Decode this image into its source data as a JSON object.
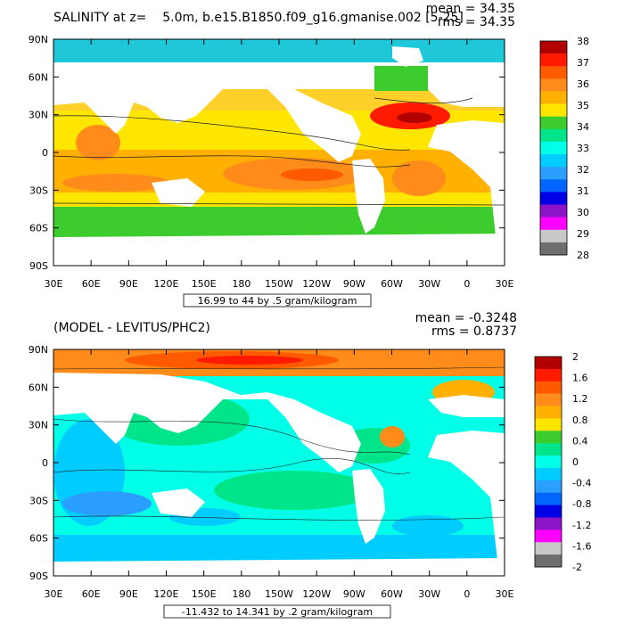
{
  "chart_data": [
    {
      "type": "heatmap",
      "title": "SALINITY at z=    5.0m, b.e15.B1850.f09_g16.gmanise.002 [5-25]",
      "stats": {
        "mean": "mean = 34.35",
        "rms": "rms = 34.35"
      },
      "xlim": [
        30,
        390
      ],
      "ylim": [
        -90,
        90
      ],
      "x_ticks": [
        "30E",
        "60E",
        "90E",
        "120E",
        "150E",
        "180",
        "150W",
        "120W",
        "90W",
        "60W",
        "30W",
        "0",
        "30E"
      ],
      "y_ticks": [
        "90N",
        "60N",
        "30N",
        "0",
        "30S",
        "60S",
        "90S"
      ],
      "contour_info": "16.99 to 44 by .5 gram/kilogram",
      "colorbar": {
        "labels": [
          "38",
          "37",
          "36",
          "35",
          "34",
          "33",
          "32",
          "31",
          "30",
          "29",
          "28"
        ],
        "colors": [
          "#b20000",
          "#ff1a00",
          "#ff5a00",
          "#ff8c1a",
          "#ffb000",
          "#ffe600",
          "#3ccc2d",
          "#00e58a",
          "#00ffe6",
          "#00ccff",
          "#2a9fff",
          "#0066ff",
          "#0000e6",
          "#8c14c8",
          "#ff00ff",
          "#c8c8c8",
          "#6e6e6e"
        ]
      }
    },
    {
      "type": "heatmap",
      "title": "(MODEL - LEVITUS/PHC2)",
      "stats": {
        "mean": "mean = -0.3248",
        "rms": "rms = 0.8737"
      },
      "xlim": [
        30,
        390
      ],
      "ylim": [
        -90,
        90
      ],
      "x_ticks": [
        "30E",
        "60E",
        "90E",
        "120E",
        "150E",
        "180",
        "150W",
        "120W",
        "90W",
        "60W",
        "30W",
        "0",
        "30E"
      ],
      "y_ticks": [
        "90N",
        "60N",
        "30N",
        "0",
        "30S",
        "60S",
        "90S"
      ],
      "contour_info": "-11.432 to 14.341 by .2 gram/kilogram",
      "colorbar": {
        "labels": [
          "2",
          "1.6",
          "1.2",
          "0.8",
          "0.4",
          "0",
          "-0.4",
          "-0.8",
          "-1.2",
          "-1.6",
          "-2"
        ],
        "colors": [
          "#b20000",
          "#ff1a00",
          "#ff5a00",
          "#ff8c1a",
          "#ffb000",
          "#ffe600",
          "#3ccc2d",
          "#00e58a",
          "#00ffe6",
          "#00ccff",
          "#2a9fff",
          "#0066ff",
          "#0000e6",
          "#8c14c8",
          "#ff00ff",
          "#c8c8c8",
          "#6e6e6e"
        ]
      }
    }
  ]
}
